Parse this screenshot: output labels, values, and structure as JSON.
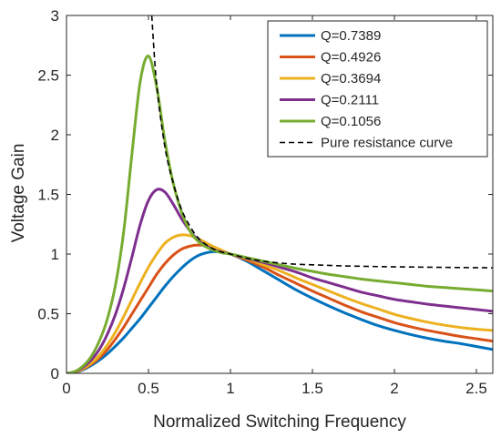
{
  "chart_data": {
    "type": "line",
    "title": "",
    "xlabel": "Normalized Switching Frequency",
    "ylabel": "Voltage Gain",
    "xlim": [
      0,
      2.6
    ],
    "ylim": [
      0,
      3
    ],
    "xticks": [
      0,
      0.5,
      1,
      1.5,
      2,
      2.5
    ],
    "xtick_labels": [
      "0",
      "0.5",
      "1",
      "1.5",
      "2",
      "2.5"
    ],
    "yticks": [
      0,
      0.5,
      1,
      1.5,
      2,
      2.5,
      3
    ],
    "ytick_labels": [
      "0",
      "0.5",
      "1",
      "1.5",
      "2",
      "2.5",
      "3"
    ],
    "grid": false,
    "legend_position": "top-right",
    "x": [
      0,
      0.05,
      0.1,
      0.15,
      0.2,
      0.25,
      0.3,
      0.35,
      0.4,
      0.45,
      0.5,
      0.55,
      0.6,
      0.65,
      0.7,
      0.75,
      0.8,
      0.85,
      0.9,
      0.95,
      1,
      1.1,
      1.2,
      1.3,
      1.4,
      1.5,
      1.6,
      1.7,
      1.8,
      1.9,
      2,
      2.1,
      2.2,
      2.3,
      2.4,
      2.5,
      2.6
    ],
    "series": [
      {
        "name": "Q=0.7389",
        "color": "#0072BD",
        "style": "solid",
        "values": [
          0,
          0.008,
          0.03,
          0.065,
          0.11,
          0.165,
          0.23,
          0.3,
          0.38,
          0.46,
          0.55,
          0.64,
          0.73,
          0.81,
          0.88,
          0.94,
          0.985,
          1.01,
          1.02,
          1.015,
          1.0,
          0.94,
          0.86,
          0.78,
          0.7,
          0.63,
          0.565,
          0.505,
          0.45,
          0.4,
          0.36,
          0.325,
          0.295,
          0.27,
          0.25,
          0.225,
          0.2
        ]
      },
      {
        "name": "Q=0.4926",
        "color": "#D95319",
        "style": "solid",
        "values": [
          0,
          0.009,
          0.035,
          0.075,
          0.13,
          0.2,
          0.29,
          0.39,
          0.5,
          0.61,
          0.72,
          0.83,
          0.92,
          0.99,
          1.04,
          1.065,
          1.075,
          1.07,
          1.05,
          1.025,
          1.0,
          0.95,
          0.89,
          0.82,
          0.755,
          0.69,
          0.63,
          0.57,
          0.515,
          0.47,
          0.425,
          0.39,
          0.36,
          0.335,
          0.31,
          0.29,
          0.27
        ]
      },
      {
        "name": "Q=0.3694",
        "color": "#EDB120",
        "style": "solid",
        "values": [
          0,
          0.01,
          0.04,
          0.085,
          0.15,
          0.24,
          0.35,
          0.48,
          0.62,
          0.76,
          0.89,
          1.0,
          1.09,
          1.14,
          1.16,
          1.155,
          1.13,
          1.095,
          1.06,
          1.03,
          1.0,
          0.96,
          0.91,
          0.86,
          0.8,
          0.745,
          0.69,
          0.635,
          0.585,
          0.54,
          0.495,
          0.46,
          0.43,
          0.405,
          0.385,
          0.37,
          0.36
        ]
      },
      {
        "name": "Q=0.2111",
        "color": "#7E2F8E",
        "style": "solid",
        "values": [
          0,
          0.012,
          0.05,
          0.11,
          0.2,
          0.33,
          0.5,
          0.72,
          0.98,
          1.25,
          1.45,
          1.54,
          1.52,
          1.42,
          1.3,
          1.2,
          1.12,
          1.07,
          1.035,
          1.015,
          1.0,
          0.965,
          0.93,
          0.89,
          0.85,
          0.8,
          0.76,
          0.72,
          0.68,
          0.65,
          0.62,
          0.6,
          0.58,
          0.565,
          0.55,
          0.535,
          0.52
        ]
      },
      {
        "name": "Q=0.1056",
        "color": "#77AC30",
        "style": "solid",
        "values": [
          0,
          0.015,
          0.06,
          0.14,
          0.27,
          0.46,
          0.75,
          1.2,
          1.85,
          2.45,
          2.66,
          2.4,
          1.95,
          1.6,
          1.36,
          1.2,
          1.11,
          1.06,
          1.03,
          1.01,
          1.0,
          0.97,
          0.94,
          0.91,
          0.88,
          0.855,
          0.83,
          0.81,
          0.79,
          0.775,
          0.76,
          0.745,
          0.73,
          0.72,
          0.71,
          0.7,
          0.69
        ]
      },
      {
        "name": "Pure resistance curve",
        "color": "#000000",
        "style": "dashed",
        "x": [
          0.52,
          0.55,
          0.6,
          0.65,
          0.7,
          0.75,
          0.8,
          0.85,
          0.9,
          0.95,
          1,
          1.1,
          1.2,
          1.3,
          1.4,
          1.5,
          1.6,
          1.7,
          1.8,
          1.9,
          2,
          2.2,
          2.4,
          2.6
        ],
        "values": [
          3.0,
          2.42,
          1.9,
          1.6,
          1.38,
          1.24,
          1.14,
          1.08,
          1.04,
          1.015,
          1.0,
          0.965,
          0.94,
          0.925,
          0.915,
          0.91,
          0.905,
          0.9,
          0.898,
          0.895,
          0.893,
          0.89,
          0.887,
          0.885
        ]
      }
    ]
  }
}
